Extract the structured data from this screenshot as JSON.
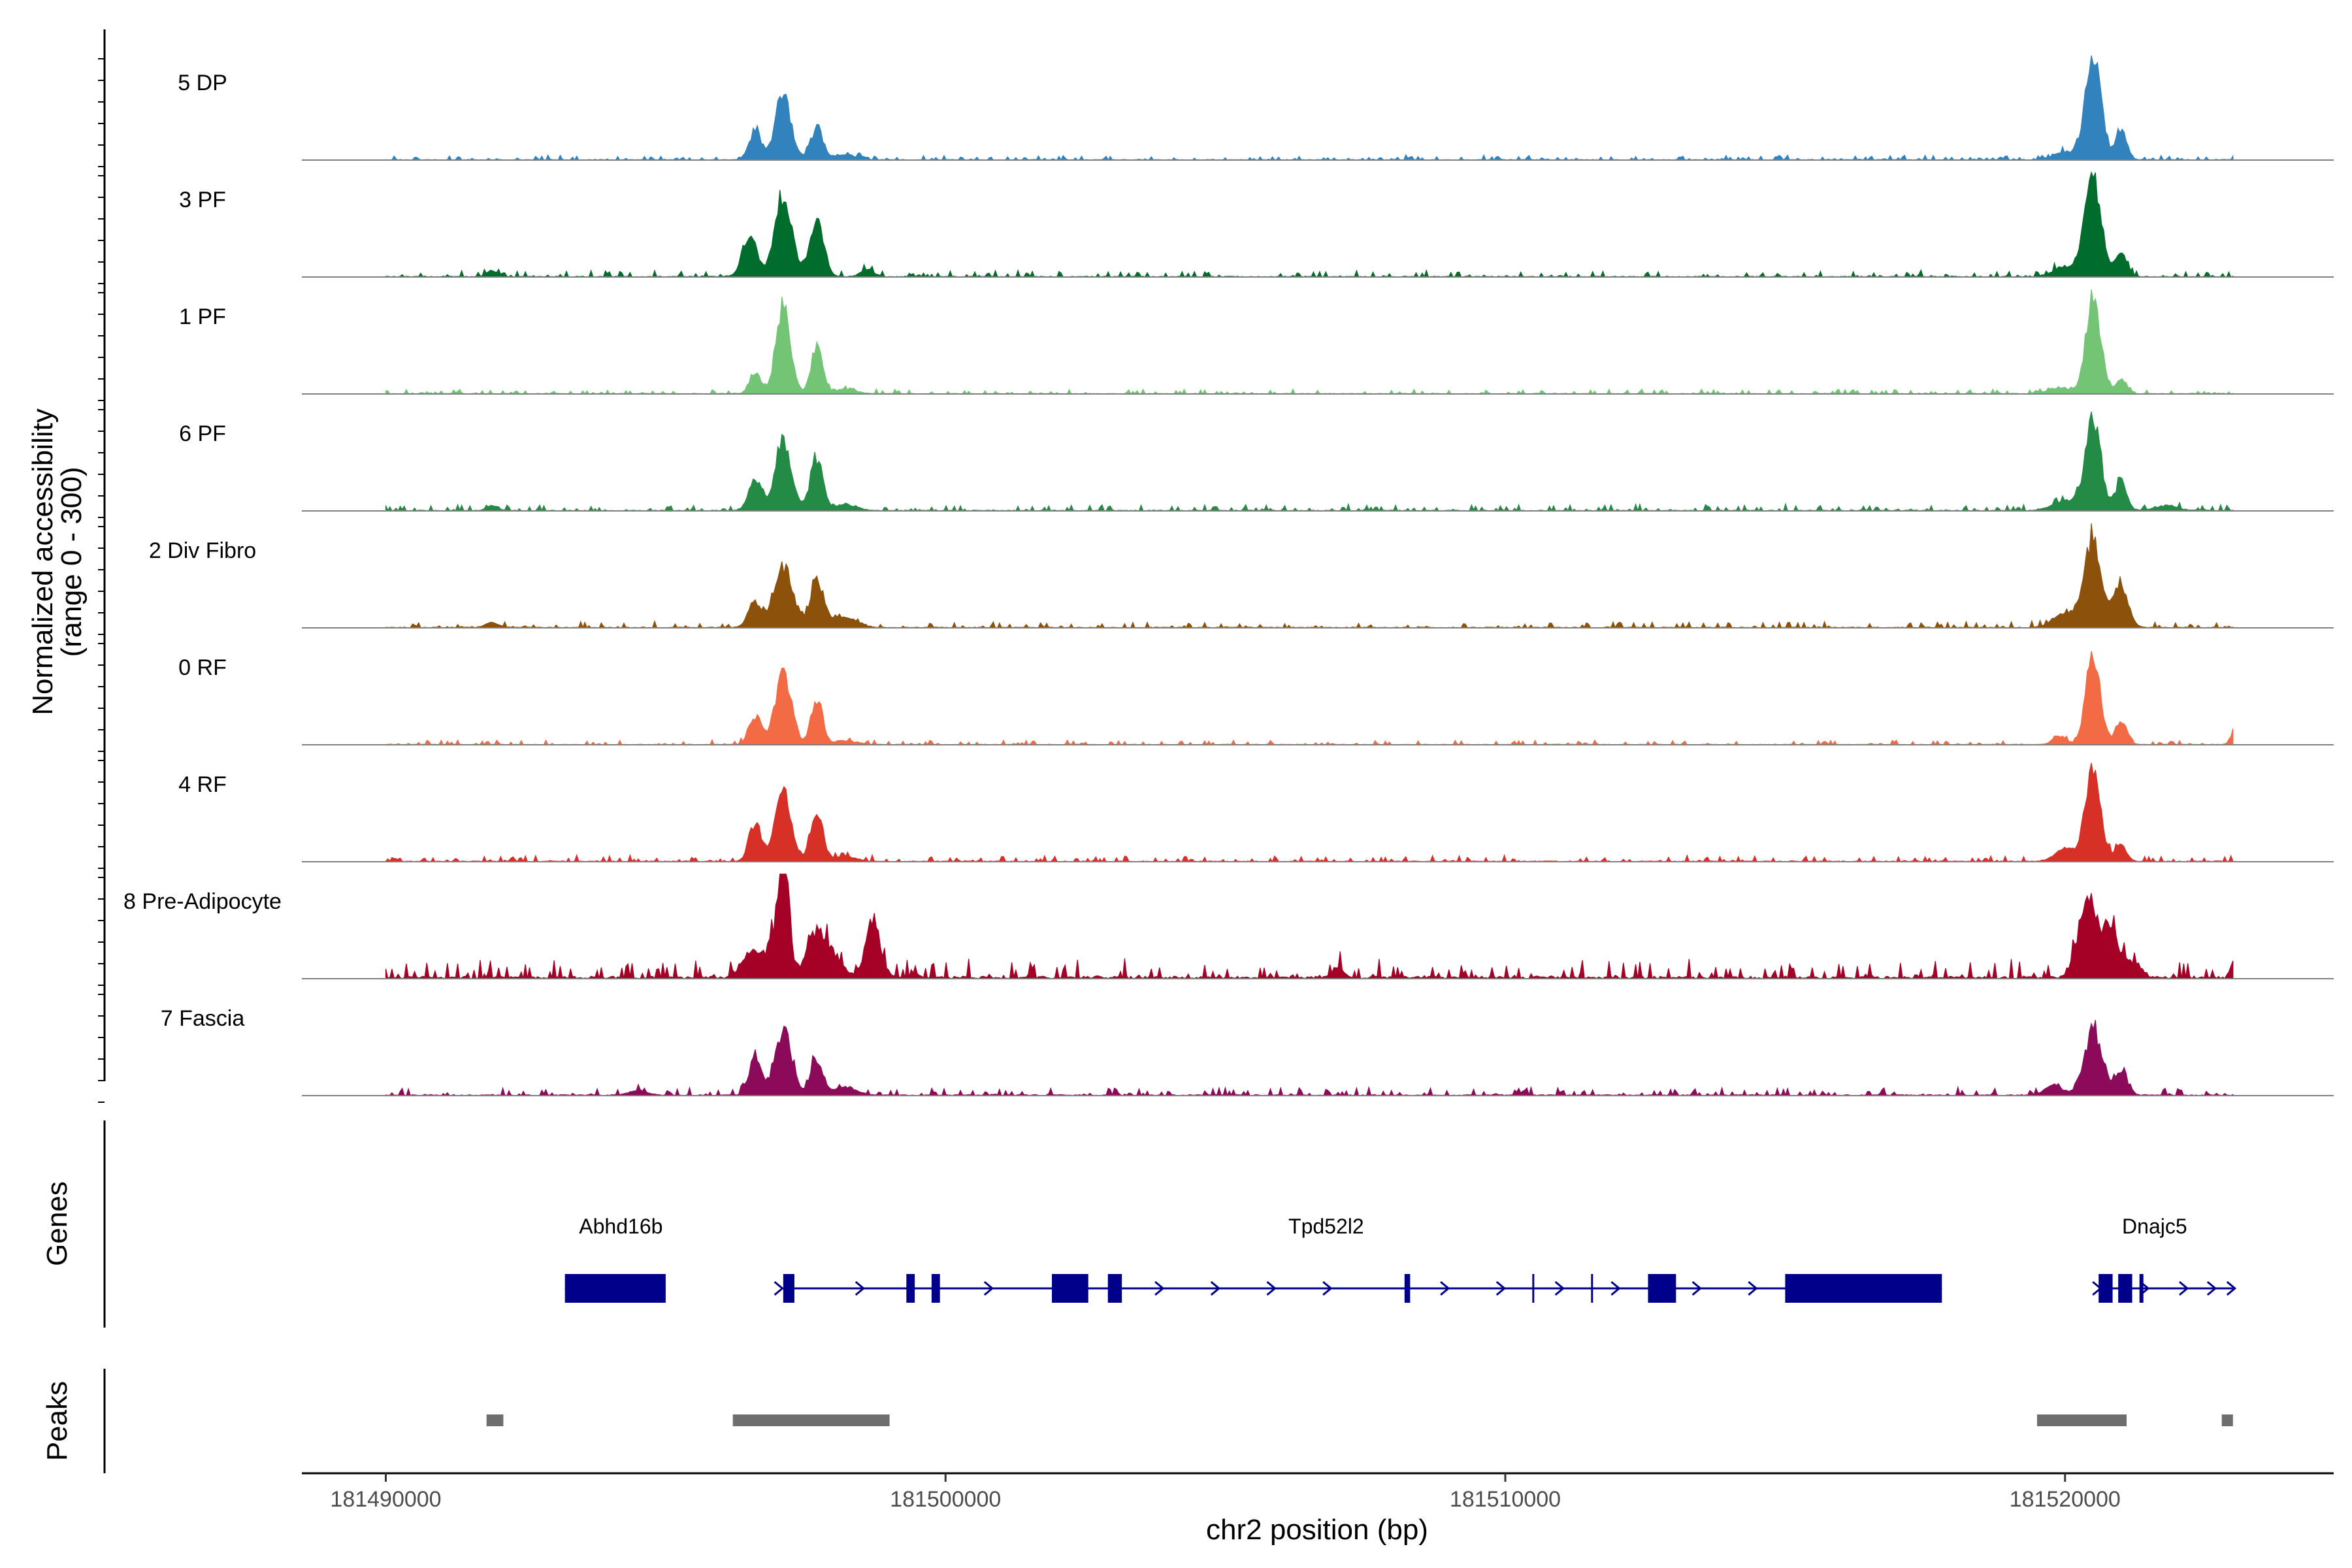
{
  "chart_data": {
    "type": "area",
    "title": "",
    "xlabel": "chr2 position (bp)",
    "ylabel_line1": "Normalized accessibility",
    "ylabel_line2": "(range 0 - 300)",
    "ylim": [
      0,
      300
    ],
    "xlim": [
      181488500,
      181524800
    ],
    "region_start": 181490000,
    "region_end": 181523000,
    "x_ticks": [
      181490000,
      181500000,
      181510000,
      181520000
    ],
    "x_tick_labels": [
      "181490000",
      "181500000",
      "181510000",
      "181520000"
    ],
    "tracks": [
      {
        "name": "5 DP",
        "color": "#3182bd",
        "peaks": [
          [
            181496600,
            0.28,
            110
          ],
          [
            181497100,
            0.62,
            140
          ],
          [
            181497700,
            0.3,
            110
          ],
          [
            181498200,
            0.05,
            200
          ],
          [
            181520500,
            1.0,
            140
          ],
          [
            181521000,
            0.3,
            100
          ],
          [
            181520000,
            0.08,
            180
          ]
        ],
        "noise": 0.015,
        "seed": 1
      },
      {
        "name": "3 PF",
        "color": "#006d2c",
        "peaks": [
          [
            181496500,
            0.4,
            130
          ],
          [
            181497100,
            0.8,
            150
          ],
          [
            181497700,
            0.55,
            120
          ],
          [
            181498600,
            0.07,
            120
          ],
          [
            181491900,
            0.06,
            100
          ],
          [
            181520500,
            0.95,
            150
          ],
          [
            181521000,
            0.22,
            100
          ],
          [
            181520000,
            0.1,
            200
          ]
        ],
        "noise": 0.02,
        "seed": 2
      },
      {
        "name": "1 PF",
        "color": "#74c476",
        "peaks": [
          [
            181496600,
            0.22,
            100
          ],
          [
            181497100,
            0.85,
            130
          ],
          [
            181497700,
            0.47,
            100
          ],
          [
            181498200,
            0.04,
            200
          ],
          [
            181520500,
            0.95,
            130
          ],
          [
            181521000,
            0.15,
            100
          ],
          [
            181519900,
            0.06,
            200
          ]
        ],
        "noise": 0.015,
        "seed": 3
      },
      {
        "name": "6 PF",
        "color": "#238b45",
        "peaks": [
          [
            181496600,
            0.3,
            110
          ],
          [
            181497100,
            0.65,
            150
          ],
          [
            181497700,
            0.5,
            110
          ],
          [
            181498200,
            0.06,
            200
          ],
          [
            181491900,
            0.05,
            100
          ],
          [
            181520500,
            0.88,
            140
          ],
          [
            181521000,
            0.28,
            100
          ],
          [
            181520000,
            0.1,
            220
          ],
          [
            181521800,
            0.05,
            200
          ]
        ],
        "noise": 0.02,
        "seed": 4
      },
      {
        "name": "2 Div Fibro",
        "color": "#8c510a",
        "peaks": [
          [
            181496600,
            0.25,
            120
          ],
          [
            181497100,
            0.6,
            160
          ],
          [
            181497700,
            0.45,
            120
          ],
          [
            181498200,
            0.1,
            220
          ],
          [
            181491900,
            0.05,
            120
          ],
          [
            181520500,
            0.88,
            150
          ],
          [
            181521000,
            0.4,
            130
          ],
          [
            181520000,
            0.15,
            200
          ]
        ],
        "noise": 0.02,
        "seed": 5
      },
      {
        "name": "0 RF",
        "color": "#f26b45",
        "peaks": [
          [
            181496600,
            0.28,
            110
          ],
          [
            181497100,
            0.72,
            140
          ],
          [
            181497700,
            0.45,
            100
          ],
          [
            181498200,
            0.04,
            200
          ],
          [
            181520500,
            0.85,
            130
          ],
          [
            181521000,
            0.23,
            100
          ],
          [
            181519900,
            0.08,
            120
          ],
          [
            181523000,
            0.1,
            60
          ]
        ],
        "noise": 0.015,
        "seed": 6
      },
      {
        "name": "4 RF",
        "color": "#d73027",
        "peaks": [
          [
            181496600,
            0.38,
            110
          ],
          [
            181497100,
            0.65,
            140
          ],
          [
            181497700,
            0.47,
            110
          ],
          [
            181498200,
            0.05,
            200
          ],
          [
            181520500,
            0.85,
            140
          ],
          [
            181521000,
            0.15,
            100
          ],
          [
            181520000,
            0.12,
            180
          ]
        ],
        "noise": 0.02,
        "seed": 7
      },
      {
        "name": "8 Pre-Adipocyte",
        "color": "#a50026",
        "peaks": [
          [
            181496500,
            0.25,
            150
          ],
          [
            181497100,
            1.0,
            80
          ],
          [
            181497000,
            0.4,
            200
          ],
          [
            181497700,
            0.45,
            150
          ],
          [
            181498700,
            0.58,
            130
          ],
          [
            181498000,
            0.2,
            150
          ],
          [
            181520400,
            0.75,
            160
          ],
          [
            181520800,
            0.5,
            140
          ],
          [
            181521200,
            0.15,
            150
          ],
          [
            181507000,
            0.12,
            80
          ],
          [
            181523000,
            0.15,
            50
          ]
        ],
        "noise": 0.06,
        "seed": 8
      },
      {
        "name": "7 Fascia",
        "color": "#8c0a5a",
        "peaks": [
          [
            181496600,
            0.38,
            110
          ],
          [
            181497100,
            0.62,
            150
          ],
          [
            181497700,
            0.35,
            110
          ],
          [
            181498200,
            0.08,
            200
          ],
          [
            181494500,
            0.05,
            150
          ],
          [
            181520500,
            0.62,
            160
          ],
          [
            181521000,
            0.2,
            120
          ],
          [
            181519800,
            0.1,
            150
          ]
        ],
        "noise": 0.025,
        "seed": 9
      }
    ],
    "genes_label": "Genes",
    "genes": [
      {
        "name": "Abhd16b",
        "label_pos": 181494200,
        "start": 181493200,
        "end": 181495000,
        "strand": "+",
        "exons": [
          [
            181493200,
            181495000
          ]
        ],
        "chevrons": [
          181493350
        ]
      },
      {
        "name": "Tpd52l2",
        "label_pos": 181506800,
        "start": 181497100,
        "end": 181517800,
        "strand": "+",
        "exons": [
          [
            181497100,
            181497300
          ],
          [
            181499300,
            181499450
          ],
          [
            181499750,
            181499900
          ],
          [
            181501900,
            181502550
          ],
          [
            181502900,
            181503150
          ],
          [
            181508200,
            181508300
          ],
          [
            181510500,
            181510530
          ],
          [
            181511550,
            181511600
          ],
          [
            181512550,
            181513050
          ],
          [
            181515000,
            181517800
          ]
        ],
        "small_exons": [
          181510500,
          181511550
        ],
        "chevrons": [
          181497050,
          181498500,
          181500800,
          181503850,
          181504850,
          181505850,
          181506850,
          181508950,
          181509950,
          181511000,
          181512000,
          181513450,
          181514450
        ]
      },
      {
        "name": "Dnajc5",
        "label_pos": 181521600,
        "start": 181520600,
        "end": 181523000,
        "strand": "+",
        "exons": [
          [
            181520600,
            181520850
          ],
          [
            181520950,
            181521200
          ],
          [
            181521330,
            181521400
          ]
        ],
        "chevrons": [
          181520600,
          181521450,
          181522150,
          181522650,
          181523000
        ]
      }
    ],
    "peaks_label": "Peaks",
    "peak_regions": [
      [
        181491800,
        181492100
      ],
      [
        181496200,
        181499000
      ],
      [
        181519500,
        181521100
      ],
      [
        181522800,
        181523000
      ]
    ]
  }
}
